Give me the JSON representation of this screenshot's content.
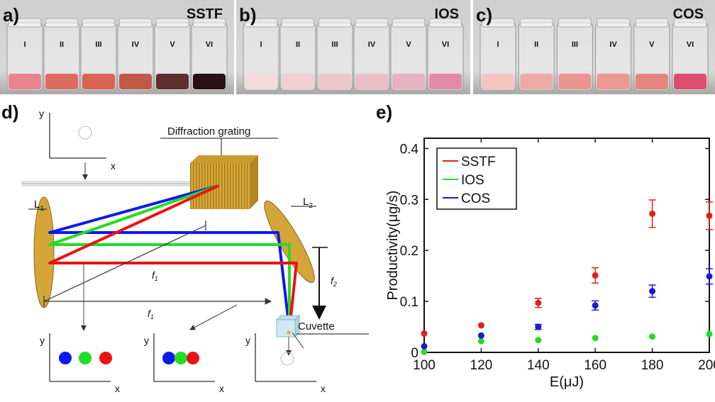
{
  "photos": [
    {
      "letter": "a)",
      "title": "SSTF",
      "vials": [
        "I",
        "II",
        "III",
        "IV",
        "V",
        "VI"
      ],
      "liquid_colors": [
        "#e9838d",
        "#dd6b62",
        "#d86451",
        "#c05a48",
        "#5e2f2b",
        "#2a1014"
      ]
    },
    {
      "letter": "b)",
      "title": "IOS",
      "vials": [
        "I",
        "II",
        "III",
        "IV",
        "V",
        "VI"
      ],
      "liquid_colors": [
        "#f2dadd",
        "#efcfd4",
        "#ecc7ce",
        "#eac0c8",
        "#e8b3c1",
        "#e48aa6"
      ]
    },
    {
      "letter": "c)",
      "title": "COS",
      "vials": [
        "I",
        "II",
        "III",
        "IV",
        "V",
        "VI"
      ],
      "liquid_colors": [
        "#f3c6c0",
        "#eeaaa4",
        "#e99690",
        "#ea9890",
        "#e58580",
        "#dc4f6a"
      ]
    }
  ],
  "diagram": {
    "letter": "d)",
    "grating_label": "Diffraction grating",
    "l1_label": "L",
    "l1_sub": "1",
    "l2_label": "L",
    "l2_sub": "2",
    "f1_label": "f",
    "f1_sub": "1",
    "f2_label": "f",
    "f2_sub": "2",
    "cuvette_label": "Cuvette",
    "axis_x": "x",
    "axis_y": "y",
    "beam_colors": {
      "blue": "#0a1aee",
      "green": "#22dd22",
      "red": "#ee1111"
    }
  },
  "chart": {
    "letter": "e)",
    "chart_data": {
      "type": "scatter",
      "xlabel": "E(μJ)",
      "ylabel": "Productivity(μg/s)",
      "xlim": [
        100,
        200
      ],
      "ylim": [
        0,
        0.42
      ],
      "xticks": [
        100,
        120,
        140,
        160,
        180,
        200
      ],
      "yticks": [
        0,
        0.1,
        0.2,
        0.3,
        0.4
      ],
      "xtick_labels": [
        "100",
        "120",
        "140",
        "160",
        "180",
        "200"
      ],
      "ytick_labels": [
        "0",
        "0.1",
        "0.2",
        "0.3",
        "0.4"
      ],
      "legend_position": "top-left",
      "grid": false,
      "series": [
        {
          "name": "SSTF",
          "color": "#e02020",
          "x": [
            100,
            120,
            140,
            160,
            180,
            200
          ],
          "y": [
            0.037,
            0.053,
            0.097,
            0.151,
            0.272,
            0.268
          ],
          "err": [
            0.003,
            0.004,
            0.009,
            0.015,
            0.027,
            0.027
          ]
        },
        {
          "name": "IOS",
          "color": "#22dd22",
          "x": [
            100,
            120,
            140,
            160,
            180,
            200
          ],
          "y": [
            0.001,
            0.022,
            0.024,
            0.028,
            0.031,
            0.036
          ],
          "err": [
            0.001,
            0.002,
            0.002,
            0.002,
            0.002,
            0.003
          ]
        },
        {
          "name": "COS",
          "color": "#1a1ad0",
          "x": [
            100,
            120,
            140,
            160,
            180,
            200
          ],
          "y": [
            0.012,
            0.033,
            0.05,
            0.092,
            0.12,
            0.149
          ],
          "err": [
            0.001,
            0.003,
            0.005,
            0.009,
            0.012,
            0.015
          ]
        }
      ]
    }
  }
}
